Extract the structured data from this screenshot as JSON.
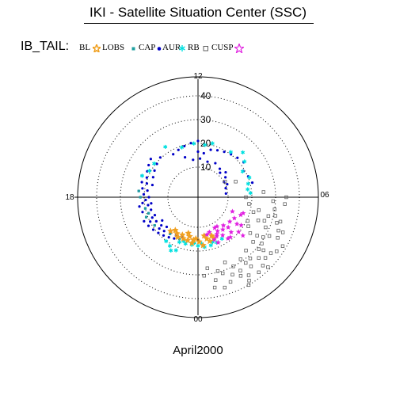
{
  "header": {
    "title": "IKI - Satellite Situation Center (SSC)"
  },
  "legend": {
    "label": "IB_TAIL:",
    "items": [
      {
        "name": "BL",
        "color": "#f0a020",
        "symbol": "star"
      },
      {
        "name": "LOBS",
        "color": "#20a0a0",
        "symbol": "square"
      },
      {
        "name": "CAP",
        "color": "#0000c8",
        "symbol": "dot"
      },
      {
        "name": "AUR",
        "color": "#00e0e0",
        "symbol": "asterisk"
      },
      {
        "name": "RB",
        "color": "#606060",
        "symbol": "open-square"
      },
      {
        "name": "CUSP",
        "color": "#e020e0",
        "symbol": "open-star"
      }
    ]
  },
  "footer": {
    "month": "April",
    "year": "2000"
  },
  "chart_data": {
    "type": "scatter",
    "projection": "polar",
    "title": "IKI - Satellite Situation Center (SSC)",
    "radial_ticks": [
      "10",
      "20",
      "30",
      "40"
    ],
    "angular_labels": {
      "top": "12",
      "left": "18",
      "right": "06",
      "bottom": "00"
    },
    "grid": true,
    "r_max": 45,
    "series": [
      {
        "name": "CAP",
        "color": "#0000c8",
        "points": [
          [
            18.5,
            17.2
          ],
          [
            18.0,
            18.0
          ],
          [
            17.5,
            18.8
          ],
          [
            17.0,
            19.6
          ],
          [
            16.6,
            20.4
          ],
          [
            16.2,
            21.3
          ],
          [
            15.8,
            22.1
          ],
          [
            15.4,
            22.9
          ],
          [
            19.5,
            17.0
          ],
          [
            19.0,
            17.8
          ],
          [
            18.6,
            18.6
          ],
          [
            18.2,
            19.4
          ],
          [
            17.8,
            20.2
          ],
          [
            17.4,
            21.0
          ],
          [
            17.0,
            21.8
          ],
          [
            16.6,
            22.6
          ],
          [
            20.5,
            16.8
          ],
          [
            20.0,
            17.6
          ],
          [
            19.6,
            18.4
          ],
          [
            19.2,
            19.2
          ],
          [
            18.8,
            20.0
          ],
          [
            18.4,
            20.8
          ],
          [
            18.0,
            21.6
          ],
          [
            17.6,
            22.4
          ],
          [
            21.5,
            16.7
          ],
          [
            21.0,
            17.5
          ],
          [
            20.6,
            18.3
          ],
          [
            20.2,
            19.1
          ],
          [
            19.8,
            19.9
          ],
          [
            19.4,
            20.7
          ],
          [
            19.0,
            21.5
          ],
          [
            18.6,
            22.3
          ],
          [
            22.4,
            16.6
          ],
          [
            22.0,
            17.4
          ],
          [
            21.6,
            18.2
          ],
          [
            21.2,
            19.0
          ],
          [
            20.8,
            19.8
          ],
          [
            20.4,
            20.6
          ],
          [
            20.0,
            21.4
          ],
          [
            19.6,
            22.2
          ],
          [
            17.0,
            17.2
          ],
          [
            16.4,
            18.0
          ],
          [
            15.9,
            18.8
          ],
          [
            15.4,
            19.6
          ],
          [
            14.9,
            20.4
          ],
          [
            14.0,
            18.2
          ],
          [
            13.5,
            18.9
          ],
          [
            13.0,
            19.6
          ],
          [
            12.5,
            20.3
          ],
          [
            12.0,
            21.0
          ],
          [
            11.0,
            18.0
          ],
          [
            10.5,
            18.7
          ],
          [
            10.0,
            19.4
          ],
          [
            9.5,
            20.1
          ],
          [
            9.0,
            20.8
          ],
          [
            8.5,
            21.5
          ],
          [
            8.0,
            19.4
          ],
          [
            7.5,
            20.2
          ],
          [
            7.0,
            21.0
          ],
          [
            22.5,
            15.0
          ],
          [
            22.0,
            15.8
          ],
          [
            21.5,
            16.1
          ],
          [
            20.9,
            15.5
          ],
          [
            20.2,
            15.3
          ],
          [
            12.0,
            16.5
          ],
          [
            11.5,
            16.0
          ],
          [
            13.2,
            15.0
          ],
          [
            12.5,
            13.2
          ],
          [
            11.8,
            13.6
          ],
          [
            11.0,
            12.8
          ],
          [
            10.2,
            13.4
          ],
          [
            9.5,
            12.4
          ],
          [
            8.8,
            13.0
          ],
          [
            9.2,
            11.2
          ],
          [
            8.4,
            11.6
          ],
          [
            7.6,
            10.8
          ],
          [
            8.0,
            10.0
          ],
          [
            7.2,
            9.6
          ],
          [
            6.5,
            9.2
          ]
        ]
      },
      {
        "name": "LOBS",
        "color": "#20a0a0",
        "points": [
          [
            22.4,
            16.6
          ],
          [
            21.5,
            16.7
          ],
          [
            19.4,
            20.7
          ],
          [
            18.0,
            21.6
          ],
          [
            17.6,
            22.4
          ],
          [
            19.2,
            19.2
          ],
          [
            20.2,
            19.1
          ],
          [
            18.8,
            20.0
          ]
        ]
      },
      {
        "name": "AUR",
        "color": "#00e0e0",
        "points": [
          [
            0.5,
            18.5
          ],
          [
            0.0,
            17.8
          ],
          [
            23.5,
            17.5
          ],
          [
            23.0,
            17.6
          ],
          [
            1.0,
            18.3
          ],
          [
            1.5,
            18.0
          ],
          [
            22.5,
            17.8
          ],
          [
            2.0,
            17.5
          ],
          [
            0.3,
            17.0
          ],
          [
            23.7,
            16.6
          ],
          [
            1.2,
            17.2
          ],
          [
            22.8,
            16.8
          ],
          [
            6.3,
            19.5
          ],
          [
            6.6,
            18.5
          ],
          [
            7.0,
            19.2
          ],
          [
            7.4,
            20.5
          ],
          [
            8.0,
            19.0
          ],
          [
            8.5,
            22.0
          ],
          [
            9.0,
            24.0
          ],
          [
            9.6,
            20.8
          ],
          [
            11.0,
            20.8
          ],
          [
            11.5,
            19.5
          ],
          [
            12.3,
            20.0
          ],
          [
            13.2,
            19.4
          ],
          [
            14.2,
            22.6
          ],
          [
            15.5,
            20.6
          ],
          [
            16.1,
            20.6
          ],
          [
            16.6,
            22.5
          ],
          [
            22.5,
            21.5
          ],
          [
            22.0,
            21.0
          ],
          [
            22.2,
            22.5
          ],
          [
            21.6,
            20.2
          ]
        ]
      },
      {
        "name": "BL",
        "color": "#f0a020",
        "points": [
          [
            0.4,
            17.7
          ],
          [
            23.5,
            16.8
          ],
          [
            1.0,
            16.5
          ],
          [
            23.1,
            16.0
          ],
          [
            0.8,
            15.2
          ],
          [
            23.6,
            15.4
          ],
          [
            0.1,
            16.1
          ],
          [
            22.7,
            15.8
          ],
          [
            1.4,
            15.9
          ],
          [
            23.2,
            14.2
          ],
          [
            0.6,
            13.8
          ],
          [
            23.0,
            13.0
          ],
          [
            22.5,
            14.5
          ],
          [
            22.2,
            16.2
          ],
          [
            22.0,
            15.0
          ],
          [
            21.7,
            14.2
          ],
          [
            21.4,
            15.7
          ],
          [
            23.8,
            14.8
          ],
          [
            1.3,
            14.5
          ]
        ]
      },
      {
        "name": "CUSP",
        "color": "#e020e0",
        "points": [
          [
            1.4,
            16.5
          ],
          [
            2.4,
            18.8
          ],
          [
            3.3,
            22.2
          ],
          [
            3.7,
            17.2
          ],
          [
            4.5,
            16.8
          ],
          [
            4.0,
            15.0
          ],
          [
            3.0,
            15.3
          ],
          [
            2.5,
            14.5
          ],
          [
            1.7,
            15.6
          ],
          [
            2.2,
            16.4
          ],
          [
            2.9,
            17.6
          ],
          [
            3.3,
            19.8
          ],
          [
            1.9,
            12.0
          ],
          [
            2.8,
            13.3
          ],
          [
            1.2,
            12.8
          ],
          [
            2.2,
            12.0
          ],
          [
            4.5,
            13.0
          ],
          [
            4.7,
            17.5
          ],
          [
            3.8,
            19.0
          ],
          [
            1.6,
            18.2
          ],
          [
            2.6,
            19.0
          ],
          [
            2.0,
            13.8
          ],
          [
            3.5,
            14.2
          ],
          [
            0.9,
            13.5
          ],
          [
            1.8,
            14.8
          ]
        ]
      },
      {
        "name": "RB",
        "color": "#606060",
        "points": [
          [
            8.0,
            10.5
          ],
          [
            7.5,
            14.5
          ],
          [
            6.3,
            25.0
          ],
          [
            6.0,
            17.5
          ],
          [
            5.5,
            19.0
          ],
          [
            5.2,
            23.5
          ],
          [
            5.0,
            21.5
          ],
          [
            5.4,
            30.0
          ],
          [
            5.0,
            28.0
          ],
          [
            4.6,
            24.5
          ],
          [
            4.3,
            20.5
          ],
          [
            4.0,
            21.8
          ],
          [
            3.7,
            24.0
          ],
          [
            3.4,
            27.2
          ],
          [
            5.1,
            30.8
          ],
          [
            4.8,
            32.2
          ],
          [
            4.5,
            34.0
          ],
          [
            4.2,
            35.0
          ],
          [
            3.9,
            29.5
          ],
          [
            3.6,
            30.5
          ],
          [
            3.3,
            31.0
          ],
          [
            3.0,
            33.5
          ],
          [
            4.9,
            33.5
          ],
          [
            4.5,
            36.0
          ],
          [
            4.1,
            31.5
          ],
          [
            3.5,
            36.0
          ],
          [
            3.2,
            35.5
          ],
          [
            2.9,
            37.0
          ],
          [
            2.7,
            31.2
          ],
          [
            2.5,
            34.0
          ],
          [
            2.3,
            29.0
          ],
          [
            2.0,
            33.0
          ],
          [
            1.8,
            30.0
          ],
          [
            1.5,
            27.0
          ],
          [
            1.2,
            31.0
          ],
          [
            2.6,
            38.0
          ],
          [
            2.2,
            36.5
          ],
          [
            1.9,
            35.0
          ],
          [
            1.0,
            29.5
          ],
          [
            0.8,
            33.0
          ],
          [
            0.5,
            27.5
          ],
          [
            6.0,
            34.5
          ],
          [
            5.7,
            34.0
          ],
          [
            4.7,
            27.0
          ],
          [
            4.4,
            28.5
          ],
          [
            3.8,
            27.0
          ],
          [
            3.4,
            32.8
          ],
          [
            2.8,
            27.5
          ],
          [
            2.4,
            31.5
          ],
          [
            1.6,
            33.0
          ],
          [
            1.4,
            35.5
          ],
          [
            2.1,
            38.5
          ],
          [
            3.0,
            39.0
          ],
          [
            3.7,
            37.5
          ],
          [
            0.3,
            30.5
          ],
          [
            0.7,
            36.0
          ],
          [
            1.1,
            37.0
          ],
          [
            2.0,
            40.0
          ],
          [
            4.0,
            38.5
          ],
          [
            5.8,
            29.0
          ]
        ]
      }
    ]
  }
}
